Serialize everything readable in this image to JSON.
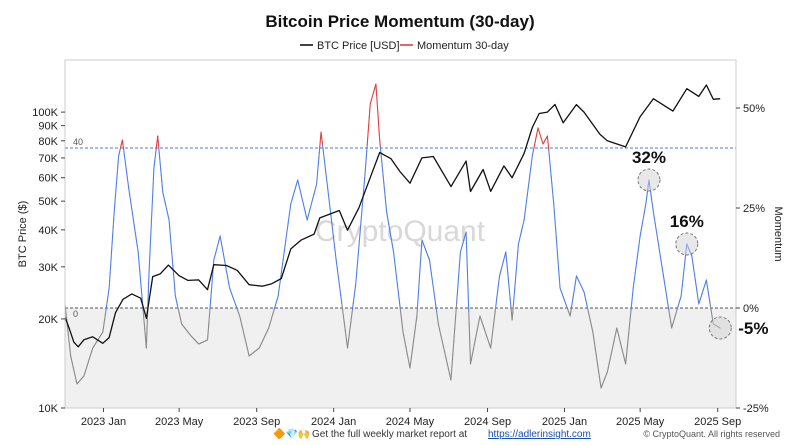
{
  "chart_data": {
    "type": "line",
    "title": "Bitcoin Price Momentum (30-day)",
    "watermark": "CryptoQuant",
    "legend": [
      {
        "name": "BTC Price [USD]",
        "color": "#111111"
      },
      {
        "name": "Momentum 30-day",
        "color": "#e04040"
      }
    ],
    "legend_position": "top-center",
    "x_ticks": [
      "2023 Jan",
      "2023 May",
      "2023 Sep",
      "2024 Jan",
      "2024 May",
      "2024 Sep",
      "2025 Jan",
      "2025 May",
      "2025 Sep"
    ],
    "x_range": [
      "2022-11-01",
      "2025-09-30"
    ],
    "y_left": {
      "label": "BTC Price ($)",
      "scale": "log",
      "range": [
        10000,
        150000
      ],
      "ticks": [
        {
          "v": 10000,
          "t": "10K"
        },
        {
          "v": 20000,
          "t": "20K"
        },
        {
          "v": 30000,
          "t": "30K"
        },
        {
          "v": 40000,
          "t": "40K"
        },
        {
          "v": 50000,
          "t": "50K"
        },
        {
          "v": 60000,
          "t": "60K"
        },
        {
          "v": 70000,
          "t": "70K"
        },
        {
          "v": 80000,
          "t": "80K"
        },
        {
          "v": 90000,
          "t": "90K"
        },
        {
          "v": 100000,
          "t": "100K"
        }
      ]
    },
    "y_right": {
      "label": "Momentum",
      "range": [
        -25,
        62
      ],
      "ticks": [
        {
          "v": 50,
          "t": "50%"
        },
        {
          "v": 25,
          "t": "25%"
        },
        {
          "v": 0,
          "t": "0%"
        },
        {
          "v": -25,
          "t": "-25%"
        }
      ]
    },
    "threshold": {
      "value": 40,
      "label": "40"
    },
    "zero_label": "0",
    "series": [
      {
        "name": "BTC Price [USD]",
        "points": [
          [
            "2022-11-01",
            20300
          ],
          [
            "2022-11-08",
            18500
          ],
          [
            "2022-11-15",
            16700
          ],
          [
            "2022-11-22",
            16100
          ],
          [
            "2022-12-01",
            17000
          ],
          [
            "2022-12-15",
            17400
          ],
          [
            "2022-12-31",
            16550
          ],
          [
            "2023-01-10",
            17300
          ],
          [
            "2023-01-20",
            21000
          ],
          [
            "2023-02-01",
            23300
          ],
          [
            "2023-02-15",
            24300
          ],
          [
            "2023-03-01",
            23500
          ],
          [
            "2023-03-10",
            20100
          ],
          [
            "2023-03-20",
            27800
          ],
          [
            "2023-04-01",
            28400
          ],
          [
            "2023-04-14",
            30400
          ],
          [
            "2023-05-01",
            28000
          ],
          [
            "2023-05-15",
            27000
          ],
          [
            "2023-06-01",
            27100
          ],
          [
            "2023-06-15",
            25100
          ],
          [
            "2023-06-25",
            30500
          ],
          [
            "2023-07-15",
            30300
          ],
          [
            "2023-08-01",
            29200
          ],
          [
            "2023-08-20",
            26100
          ],
          [
            "2023-09-10",
            25800
          ],
          [
            "2023-09-25",
            26300
          ],
          [
            "2023-10-10",
            27400
          ],
          [
            "2023-10-25",
            34500
          ],
          [
            "2023-11-10",
            36900
          ],
          [
            "2023-12-01",
            38700
          ],
          [
            "2023-12-10",
            43900
          ],
          [
            "2024-01-10",
            46500
          ],
          [
            "2024-01-23",
            39900
          ],
          [
            "2024-02-10",
            47500
          ],
          [
            "2024-02-28",
            60000
          ],
          [
            "2024-03-14",
            73000
          ],
          [
            "2024-04-01",
            69600
          ],
          [
            "2024-04-15",
            63000
          ],
          [
            "2024-05-01",
            57500
          ],
          [
            "2024-05-20",
            70000
          ],
          [
            "2024-06-07",
            70800
          ],
          [
            "2024-07-05",
            56000
          ],
          [
            "2024-07-29",
            68300
          ],
          [
            "2024-08-05",
            53900
          ],
          [
            "2024-08-25",
            64000
          ],
          [
            "2024-09-06",
            54000
          ],
          [
            "2024-09-27",
            65800
          ],
          [
            "2024-10-10",
            60000
          ],
          [
            "2024-10-29",
            72500
          ],
          [
            "2024-11-11",
            88700
          ],
          [
            "2024-11-22",
            98900
          ],
          [
            "2024-12-05",
            100000
          ],
          [
            "2024-12-17",
            106100
          ],
          [
            "2024-12-30",
            92000
          ],
          [
            "2025-01-20",
            106000
          ],
          [
            "2025-02-01",
            100000
          ],
          [
            "2025-02-26",
            84300
          ],
          [
            "2025-03-10",
            80000
          ],
          [
            "2025-04-08",
            76300
          ],
          [
            "2025-05-01",
            96500
          ],
          [
            "2025-05-22",
            111000
          ],
          [
            "2025-06-22",
            100800
          ],
          [
            "2025-07-14",
            120000
          ],
          [
            "2025-08-02",
            113000
          ],
          [
            "2025-08-14",
            123500
          ],
          [
            "2025-08-25",
            110500
          ],
          [
            "2025-09-05",
            111000
          ]
        ]
      },
      {
        "name": "Momentum 30-day",
        "points": [
          [
            "2022-11-01",
            1
          ],
          [
            "2022-11-10",
            -12
          ],
          [
            "2022-11-20",
            -19
          ],
          [
            "2022-12-01",
            -17
          ],
          [
            "2022-12-15",
            -10
          ],
          [
            "2022-12-31",
            -6
          ],
          [
            "2023-01-10",
            5
          ],
          [
            "2023-01-18",
            24
          ],
          [
            "2023-01-25",
            38
          ],
          [
            "2023-01-31",
            42
          ],
          [
            "2023-02-10",
            30
          ],
          [
            "2023-02-25",
            14
          ],
          [
            "2023-03-10",
            -10
          ],
          [
            "2023-03-14",
            8
          ],
          [
            "2023-03-22",
            35
          ],
          [
            "2023-03-28",
            43
          ],
          [
            "2023-04-05",
            29
          ],
          [
            "2023-04-15",
            22
          ],
          [
            "2023-04-25",
            3
          ],
          [
            "2023-05-05",
            -4
          ],
          [
            "2023-05-20",
            -7
          ],
          [
            "2023-06-01",
            -9
          ],
          [
            "2023-06-15",
            -8
          ],
          [
            "2023-06-25",
            12
          ],
          [
            "2023-07-05",
            18
          ],
          [
            "2023-07-20",
            5
          ],
          [
            "2023-08-05",
            -2
          ],
          [
            "2023-08-20",
            -12
          ],
          [
            "2023-09-05",
            -10
          ],
          [
            "2023-09-20",
            -5
          ],
          [
            "2023-10-05",
            3
          ],
          [
            "2023-10-25",
            26
          ],
          [
            "2023-11-05",
            32
          ],
          [
            "2023-11-20",
            22
          ],
          [
            "2023-12-05",
            31
          ],
          [
            "2023-12-12",
            44
          ],
          [
            "2024-01-05",
            12
          ],
          [
            "2024-01-23",
            -10
          ],
          [
            "2024-02-05",
            6
          ],
          [
            "2024-02-20",
            34
          ],
          [
            "2024-02-28",
            51
          ],
          [
            "2024-03-08",
            56
          ],
          [
            "2024-03-14",
            42
          ],
          [
            "2024-03-25",
            24
          ],
          [
            "2024-04-05",
            14
          ],
          [
            "2024-04-20",
            -6
          ],
          [
            "2024-05-01",
            -15
          ],
          [
            "2024-05-12",
            -2
          ],
          [
            "2024-05-20",
            17
          ],
          [
            "2024-06-01",
            12
          ],
          [
            "2024-06-15",
            -4
          ],
          [
            "2024-07-05",
            -18
          ],
          [
            "2024-07-20",
            14
          ],
          [
            "2024-07-29",
            19
          ],
          [
            "2024-08-05",
            -14
          ],
          [
            "2024-08-20",
            -2
          ],
          [
            "2024-09-06",
            -10
          ],
          [
            "2024-09-20",
            8
          ],
          [
            "2024-09-30",
            14
          ],
          [
            "2024-10-10",
            -3
          ],
          [
            "2024-10-20",
            16
          ],
          [
            "2024-10-29",
            22
          ],
          [
            "2024-11-11",
            38
          ],
          [
            "2024-11-20",
            45
          ],
          [
            "2024-11-28",
            41
          ],
          [
            "2024-12-05",
            43
          ],
          [
            "2024-12-15",
            26
          ],
          [
            "2024-12-25",
            5
          ],
          [
            "2025-01-10",
            -2
          ],
          [
            "2025-01-20",
            8
          ],
          [
            "2025-02-01",
            4
          ],
          [
            "2025-02-15",
            -6
          ],
          [
            "2025-02-28",
            -20
          ],
          [
            "2025-03-10",
            -16
          ],
          [
            "2025-03-25",
            -5
          ],
          [
            "2025-04-08",
            -14
          ],
          [
            "2025-04-20",
            5
          ],
          [
            "2025-05-01",
            18
          ],
          [
            "2025-05-10",
            26
          ],
          [
            "2025-05-15",
            32
          ],
          [
            "2025-05-22",
            24
          ],
          [
            "2025-06-05",
            10
          ],
          [
            "2025-06-20",
            -5
          ],
          [
            "2025-07-05",
            3
          ],
          [
            "2025-07-14",
            16
          ],
          [
            "2025-07-22",
            13
          ],
          [
            "2025-08-02",
            1
          ],
          [
            "2025-08-14",
            7
          ],
          [
            "2025-08-25",
            -4
          ],
          [
            "2025-09-05",
            -5
          ]
        ]
      }
    ],
    "annotations": [
      {
        "text": "32%",
        "date": "2025-05-15",
        "value": 32
      },
      {
        "text": "16%",
        "date": "2025-07-14",
        "value": 16
      },
      {
        "text": "-5%",
        "date": "2025-09-05",
        "value": -5
      }
    ]
  },
  "footer": {
    "emoji": "🔶💎🙌",
    "text": "Get the full weekly market report at",
    "link": "https://adlerinsight.com",
    "copyright": "© CryptoQuant. All rights reserved"
  }
}
